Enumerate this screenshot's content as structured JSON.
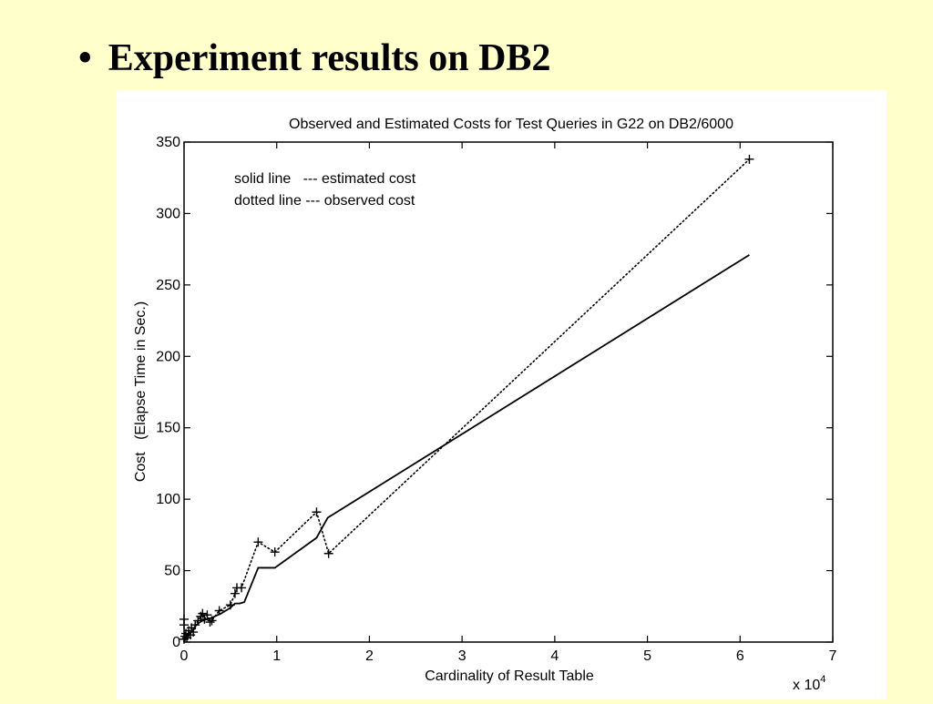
{
  "slide": {
    "bullet": "•",
    "title": "Experiment results on DB2"
  },
  "colors": {
    "background": "#ffffcc",
    "plot_bg": "#ffffff",
    "ink": "#000000"
  },
  "chart_data": {
    "type": "line",
    "title": "Observed and Estimated Costs for Test Queries in G22 on DB2/6000",
    "xlabel": "Cardinality of Result Table",
    "ylabel": "Cost   (Elapse Time in Sec.)",
    "x_multiplier": "x 10",
    "x_multiplier_exp": "4",
    "xlim": [
      0,
      7
    ],
    "ylim": [
      0,
      350
    ],
    "xticks": [
      0,
      1,
      2,
      3,
      4,
      5,
      6,
      7
    ],
    "yticks": [
      0,
      50,
      100,
      150,
      200,
      250,
      300,
      350
    ],
    "annotations": [
      "solid line   --- estimated cost",
      "dotted line --- observed cost"
    ],
    "series": [
      {
        "style": "solid",
        "x": [
          0,
          0.02,
          0.05,
          0.08,
          0.1,
          0.12,
          0.15,
          0.2,
          0.25,
          0.3,
          0.4,
          0.5,
          0.55,
          0.6,
          0.65,
          0.8,
          0.98,
          1.43,
          1.55,
          6.1
        ],
        "y": [
          0,
          3,
          5,
          7,
          9,
          11,
          13,
          15,
          16,
          17,
          20,
          24,
          27,
          27,
          28,
          52,
          52,
          73,
          87,
          271
        ]
      },
      {
        "style": "dotted",
        "marker": "+",
        "x": [
          0,
          0.01,
          0.02,
          0.03,
          0.05,
          0.07,
          0.08,
          0.1,
          0.12,
          0.15,
          0.18,
          0.2,
          0.22,
          0.25,
          0.28,
          0.3,
          0.38,
          0.5,
          0.55,
          0.57,
          0.62,
          0.8,
          0.98,
          1.43,
          1.56,
          6.1
        ],
        "y": [
          2,
          4,
          6,
          3,
          8,
          5,
          10,
          7,
          12,
          15,
          18,
          20,
          16,
          19,
          14,
          15,
          22,
          26,
          34,
          38,
          38,
          70,
          63,
          91,
          62,
          338
        ]
      }
    ],
    "extra_markers": [
      {
        "x": 0,
        "y": 16
      },
      {
        "x": 0,
        "y": 12
      }
    ],
    "legend": "top-left"
  }
}
